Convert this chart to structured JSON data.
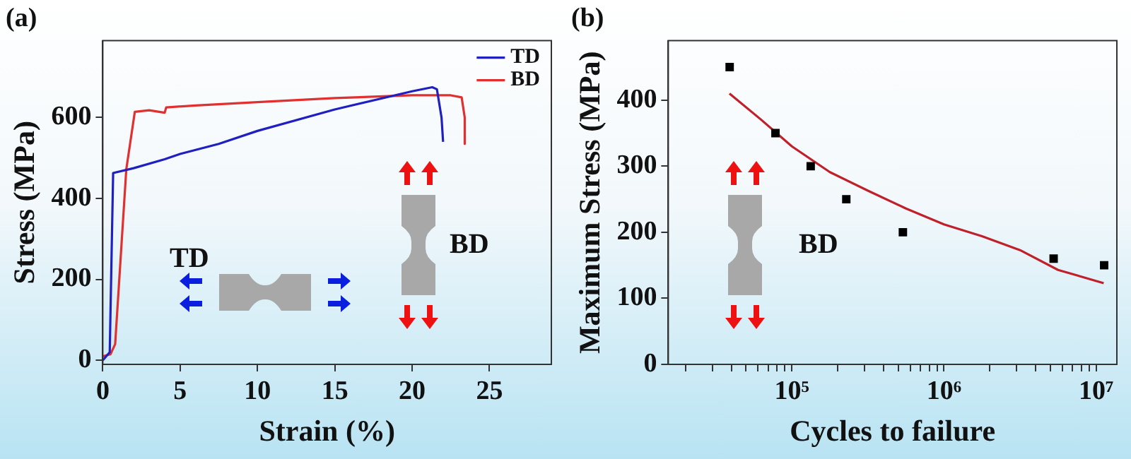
{
  "chart_data": [
    {
      "type": "line",
      "title": "(a)",
      "xlabel": "Strain (%)",
      "ylabel": "Stress (MPa)",
      "xlim": [
        0,
        29
      ],
      "ylim": [
        -10,
        790
      ],
      "xticks": [
        0,
        5,
        10,
        15,
        20,
        25
      ],
      "yticks": [
        0,
        200,
        400,
        600
      ],
      "grid": false,
      "legend": "top right",
      "marker": "none",
      "annotations": [
        "TD",
        "BD"
      ],
      "series": [
        {
          "name": "TD",
          "color": "#2020c0",
          "x": [
            0,
            0.45,
            0.67,
            2,
            4,
            5,
            7.5,
            10,
            15,
            20,
            21.3,
            21.6,
            21.9,
            22
          ],
          "values": [
            0,
            20,
            463,
            475,
            497,
            510,
            535,
            567,
            620,
            665,
            675,
            670,
            600,
            540
          ]
        },
        {
          "name": "BD",
          "color": "#e03030",
          "x": [
            0,
            0.5,
            0.8,
            1.52,
            2.07,
            3,
            4,
            4.1,
            6,
            10,
            15,
            20,
            22.5,
            23.2,
            23.4,
            23.4
          ],
          "values": [
            10,
            15,
            40,
            472,
            614,
            618,
            612,
            625,
            630,
            638,
            648,
            655,
            655,
            650,
            600,
            535
          ]
        }
      ]
    },
    {
      "type": "scatter",
      "title": "(b)",
      "xlabel": "Cycles to failure",
      "ylabel": "Maximum Stress (MPa)",
      "log": "x",
      "xlim": [
        15400,
        13700000
      ],
      "ylim": [
        0,
        490
      ],
      "xticks": [
        {
          "value": 20000,
          "label": null
        },
        {
          "value": 30000,
          "label": null
        },
        {
          "value": 40000,
          "label": null
        },
        {
          "value": 50000,
          "label": null
        },
        {
          "value": 60000,
          "label": null
        },
        {
          "value": 70000,
          "label": null
        },
        {
          "value": 80000,
          "label": null
        },
        {
          "value": 90000,
          "label": null
        },
        {
          "value": 100000,
          "label": "10⁵"
        },
        {
          "value": 200000,
          "label": null
        },
        {
          "value": 300000,
          "label": null
        },
        {
          "value": 400000,
          "label": null
        },
        {
          "value": 500000,
          "label": null
        },
        {
          "value": 600000,
          "label": null
        },
        {
          "value": 700000,
          "label": null
        },
        {
          "value": 800000,
          "label": null
        },
        {
          "value": 900000,
          "label": null
        },
        {
          "value": 1000000,
          "label": "10⁶"
        },
        {
          "value": 2000000,
          "label": null
        },
        {
          "value": 3000000,
          "label": null
        },
        {
          "value": 4000000,
          "label": null
        },
        {
          "value": 5000000,
          "label": null
        },
        {
          "value": 6000000,
          "label": null
        },
        {
          "value": 7000000,
          "label": null
        },
        {
          "value": 8000000,
          "label": null
        },
        {
          "value": 9000000,
          "label": null
        },
        {
          "value": 10000000,
          "label": "10⁷"
        }
      ],
      "yticks": [
        0,
        100,
        200,
        300,
        400
      ],
      "grid": false,
      "annotations": [
        "BD"
      ],
      "series": [
        {
          "type": "scatter",
          "marker": "square",
          "color": "#000000",
          "x": [
            39000,
            78000,
            133000,
            228000,
            537000,
            5260000,
            11300000
          ],
          "values": [
            450,
            350,
            300,
            250,
            200,
            160,
            150
          ]
        },
        {
          "type": "line",
          "marker": "none",
          "color": "#c0202a",
          "x": [
            38900,
            63100,
            100000,
            177800,
            316200,
            562300,
            1000000,
            1778000,
            3162000,
            5623000,
            11220000
          ],
          "values": [
            410,
            370,
            330,
            291,
            263,
            236,
            212,
            194,
            173,
            143,
            123
          ]
        }
      ]
    }
  ]
}
